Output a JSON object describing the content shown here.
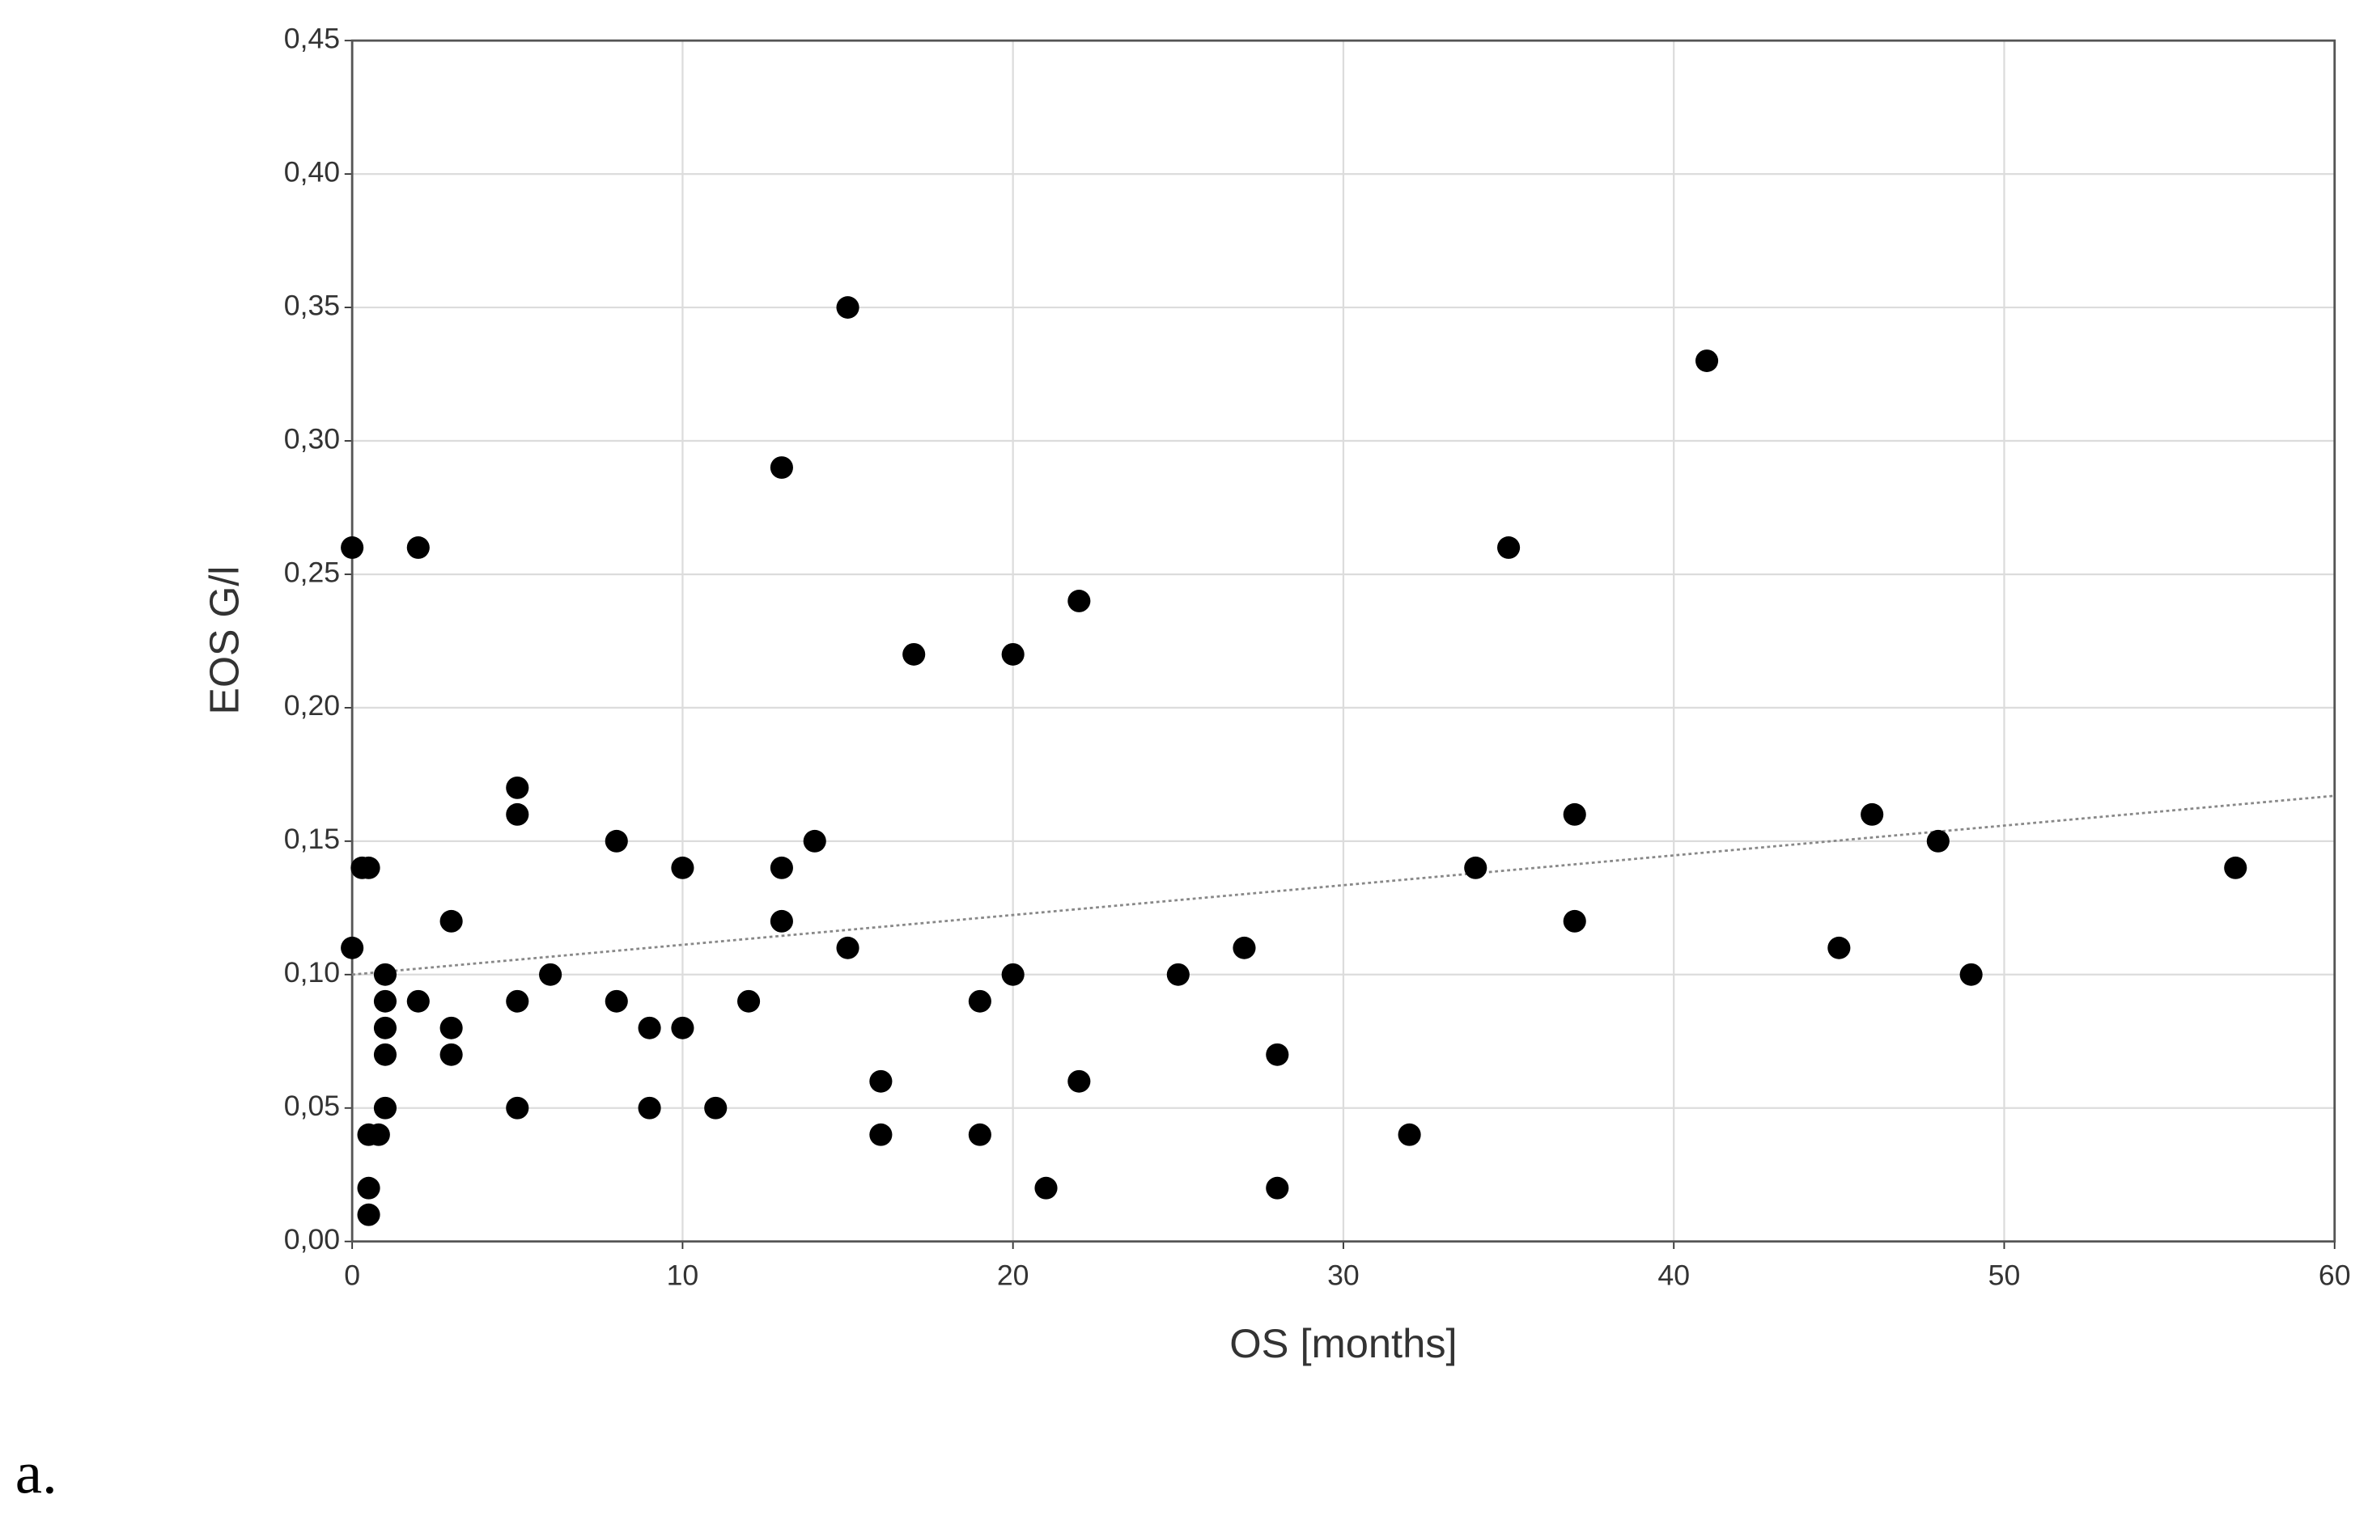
{
  "chart_data": {
    "type": "scatter",
    "x_label": "OS [months]",
    "y_label": "EOS G/l",
    "xlim": [
      0,
      60
    ],
    "ylim": [
      0,
      0.45
    ],
    "xticks": [
      0,
      10,
      20,
      30,
      40,
      50,
      60
    ],
    "yticks": [
      {
        "value": 0,
        "label": "0,00"
      },
      {
        "value": 0.05,
        "label": "0,05"
      },
      {
        "value": 0.1,
        "label": "0,10"
      },
      {
        "value": 0.15,
        "label": "0,15"
      },
      {
        "value": 0.2,
        "label": "0,20"
      },
      {
        "value": 0.25,
        "label": "0,25"
      },
      {
        "value": 0.3,
        "label": "0,30"
      },
      {
        "value": 0.35,
        "label": "0,35"
      },
      {
        "value": 0.4,
        "label": "0,40"
      },
      {
        "value": 0.45,
        "label": "0,45"
      }
    ],
    "grid": true,
    "color": "#000000",
    "x": [
      0,
      0,
      0.3,
      0.5,
      2,
      0.5,
      0.5,
      0.5,
      0.8,
      1,
      1,
      1,
      1,
      1,
      2,
      3,
      3,
      3,
      5,
      5,
      5,
      5,
      6,
      8,
      8,
      9,
      9,
      10,
      10,
      11,
      12,
      13,
      13,
      13,
      14,
      15,
      15,
      16,
      16,
      17,
      19,
      19,
      20,
      20,
      21,
      22,
      22,
      25,
      27,
      28,
      28,
      32,
      34,
      35,
      37,
      37,
      41,
      45,
      46,
      48,
      49,
      57
    ],
    "values": [
      0.26,
      0.11,
      0.14,
      0.14,
      0.26,
      0.04,
      0.02,
      0.01,
      0.04,
      0.1,
      0.09,
      0.08,
      0.07,
      0.05,
      0.09,
      0.12,
      0.08,
      0.07,
      0.17,
      0.16,
      0.09,
      0.05,
      0.1,
      0.15,
      0.09,
      0.08,
      0.05,
      0.14,
      0.08,
      0.05,
      0.09,
      0.29,
      0.14,
      0.12,
      0.15,
      0.35,
      0.11,
      0.06,
      0.04,
      0.22,
      0.09,
      0.04,
      0.22,
      0.1,
      0.02,
      0.24,
      0.06,
      0.1,
      0.11,
      0.07,
      0.02,
      0.04,
      0.14,
      0.26,
      0.16,
      0.12,
      0.33,
      0.11,
      0.16,
      0.15,
      0.1,
      0.14
    ],
    "trendline": {
      "x": [
        0,
        60
      ],
      "y": [
        0.1,
        0.167
      ],
      "color": "#888888"
    }
  },
  "caption": "a."
}
